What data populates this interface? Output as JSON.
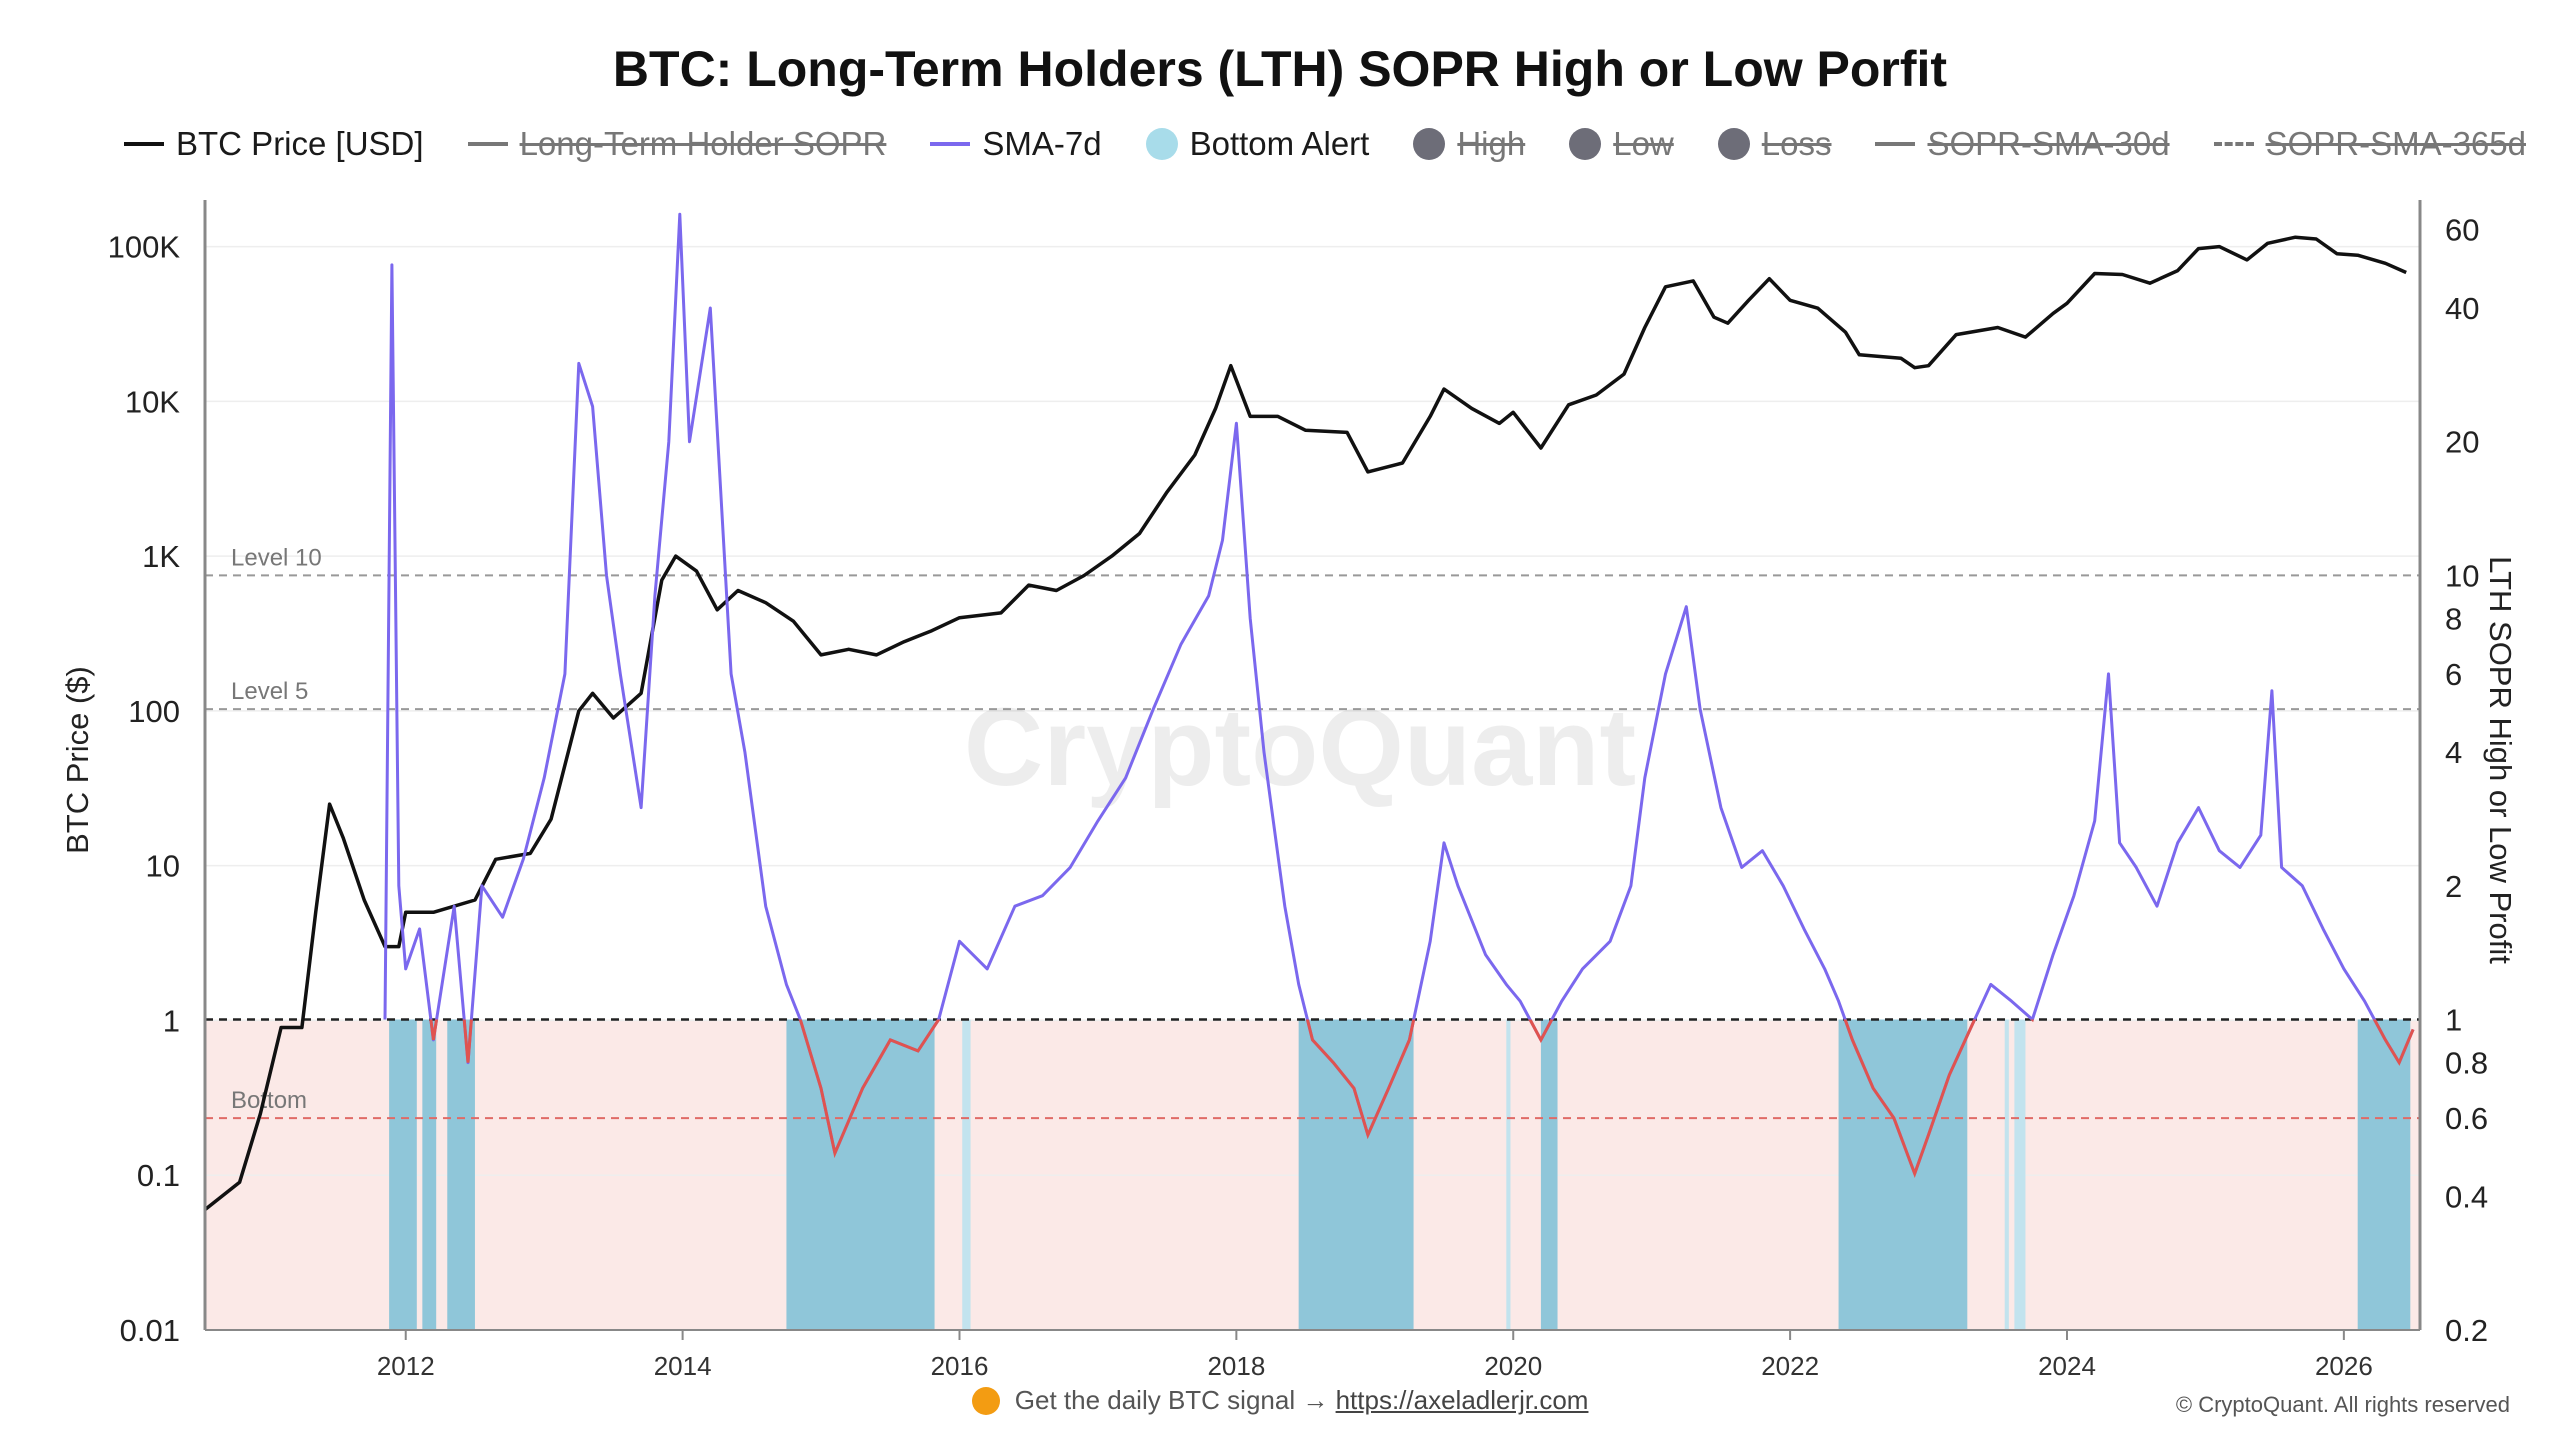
{
  "title": "BTC: Long-Term Holders (LTH) SOPR High or Low Porfit",
  "legend": [
    {
      "label": "BTC Price [USD]",
      "swatch": "line",
      "color": "#111111",
      "enabled": true
    },
    {
      "label": "Long-Term Holder SOPR",
      "swatch": "line",
      "color": "#777777",
      "enabled": false
    },
    {
      "label": "SMA-7d",
      "swatch": "line",
      "color": "#7b68ee",
      "enabled": true
    },
    {
      "label": "Bottom Alert",
      "swatch": "dot",
      "color": "#a8dcea",
      "enabled": true
    },
    {
      "label": "High",
      "swatch": "dot",
      "color": "#6d6d78",
      "enabled": false
    },
    {
      "label": "Low",
      "swatch": "dot",
      "color": "#6d6d78",
      "enabled": false
    },
    {
      "label": "Loss",
      "swatch": "dot",
      "color": "#6d6d78",
      "enabled": false
    },
    {
      "label": "SOPR-SMA-30d",
      "swatch": "line",
      "color": "#777777",
      "enabled": false
    },
    {
      "label": "SOPR-SMA-365d",
      "swatch": "dash",
      "color": "#777777",
      "enabled": false
    }
  ],
  "watermark": "CryptoQuant",
  "footer": {
    "signal_text": "Get the daily BTC signal →",
    "link": "https://axeladlerjr.com",
    "copyright": "© CryptoQuant. All rights reserved"
  },
  "colors": {
    "price": "#111111",
    "sma": "#7b68ee",
    "loss": "#e0534f",
    "bottom_alert": "#8fc6d9",
    "bottom_alert_light": "#c2e3ee",
    "loss_zone": "#fbe9e7",
    "grid": "#eeeeee",
    "level_line": "#999999",
    "bottom_line": "#e06a66"
  },
  "chart_data": {
    "type": "line",
    "x_range": [
      2010.55,
      2026.55
    ],
    "x_ticks": [
      "2012",
      "2014",
      "2016",
      "2018",
      "2020",
      "2022",
      "2024",
      "2026"
    ],
    "y_left": {
      "label": "BTC Price ($)",
      "scale": "log",
      "range": [
        0.01,
        200000
      ],
      "ticks": [
        "0.01",
        "0.1",
        "1",
        "10",
        "100",
        "1K",
        "10K",
        "100K"
      ]
    },
    "y_right": {
      "label": "LTH SOPR High or Low Profit",
      "scale": "log",
      "range": [
        0.2,
        70
      ],
      "ticks": [
        "0.2",
        "0.4",
        "0.6",
        "0.8",
        "1",
        "2",
        "4",
        "6",
        "8",
        "10",
        "20",
        "40",
        "60"
      ]
    },
    "reference_lines": [
      {
        "label": "Level 10",
        "value": 10
      },
      {
        "label": "Level 5",
        "value": 5
      },
      {
        "label": "",
        "value": 1
      },
      {
        "label": "Bottom",
        "value": 0.6
      }
    ],
    "series": [
      {
        "name": "BTC Price [USD]",
        "axis": "left",
        "points": [
          [
            2010.55,
            0.06
          ],
          [
            2010.8,
            0.09
          ],
          [
            2010.95,
            0.25
          ],
          [
            2011.1,
            0.9
          ],
          [
            2011.25,
            0.9
          ],
          [
            2011.35,
            5
          ],
          [
            2011.45,
            25
          ],
          [
            2011.55,
            15
          ],
          [
            2011.7,
            6
          ],
          [
            2011.85,
            3
          ],
          [
            2011.95,
            3
          ],
          [
            2012.0,
            5
          ],
          [
            2012.2,
            5
          ],
          [
            2012.5,
            6
          ],
          [
            2012.65,
            11
          ],
          [
            2012.9,
            12
          ],
          [
            2013.05,
            20
          ],
          [
            2013.25,
            100
          ],
          [
            2013.35,
            130
          ],
          [
            2013.5,
            90
          ],
          [
            2013.7,
            130
          ],
          [
            2013.85,
            700
          ],
          [
            2013.95,
            1000
          ],
          [
            2014.1,
            800
          ],
          [
            2014.25,
            450
          ],
          [
            2014.4,
            600
          ],
          [
            2014.6,
            500
          ],
          [
            2014.8,
            380
          ],
          [
            2015.0,
            230
          ],
          [
            2015.2,
            250
          ],
          [
            2015.4,
            230
          ],
          [
            2015.6,
            280
          ],
          [
            2015.8,
            330
          ],
          [
            2016.0,
            400
          ],
          [
            2016.3,
            430
          ],
          [
            2016.5,
            650
          ],
          [
            2016.7,
            600
          ],
          [
            2016.9,
            750
          ],
          [
            2017.1,
            1000
          ],
          [
            2017.3,
            1400
          ],
          [
            2017.5,
            2600
          ],
          [
            2017.7,
            4500
          ],
          [
            2017.85,
            9000
          ],
          [
            2017.96,
            17000
          ],
          [
            2018.1,
            8000
          ],
          [
            2018.3,
            8000
          ],
          [
            2018.5,
            6500
          ],
          [
            2018.8,
            6300
          ],
          [
            2018.95,
            3500
          ],
          [
            2019.2,
            4000
          ],
          [
            2019.4,
            8000
          ],
          [
            2019.5,
            12000
          ],
          [
            2019.7,
            9000
          ],
          [
            2019.9,
            7200
          ],
          [
            2020.0,
            8500
          ],
          [
            2020.2,
            5000
          ],
          [
            2020.4,
            9500
          ],
          [
            2020.6,
            11000
          ],
          [
            2020.8,
            15000
          ],
          [
            2020.95,
            30000
          ],
          [
            2021.1,
            55000
          ],
          [
            2021.3,
            60000
          ],
          [
            2021.45,
            35000
          ],
          [
            2021.55,
            32000
          ],
          [
            2021.7,
            45000
          ],
          [
            2021.85,
            62000
          ],
          [
            2022.0,
            45000
          ],
          [
            2022.2,
            40000
          ],
          [
            2022.4,
            28000
          ],
          [
            2022.5,
            20000
          ],
          [
            2022.8,
            19000
          ],
          [
            2022.9,
            16500
          ],
          [
            2023.0,
            17000
          ],
          [
            2023.2,
            27000
          ],
          [
            2023.5,
            30000
          ],
          [
            2023.7,
            26000
          ],
          [
            2023.9,
            37000
          ],
          [
            2024.0,
            43000
          ],
          [
            2024.2,
            67000
          ],
          [
            2024.4,
            66000
          ],
          [
            2024.6,
            58000
          ],
          [
            2024.8,
            70000
          ],
          [
            2024.95,
            97000
          ],
          [
            2025.1,
            100000
          ],
          [
            2025.3,
            82000
          ],
          [
            2025.45,
            105000
          ],
          [
            2025.65,
            115000
          ],
          [
            2025.8,
            112000
          ],
          [
            2025.95,
            90000
          ],
          [
            2026.1,
            88000
          ],
          [
            2026.3,
            78000
          ],
          [
            2026.45,
            68000
          ]
        ]
      },
      {
        "name": "SMA-7d",
        "axis": "right",
        "points": [
          [
            2011.85,
            1.0
          ],
          [
            2011.9,
            50
          ],
          [
            2011.95,
            2.0
          ],
          [
            2012.0,
            1.3
          ],
          [
            2012.1,
            1.6
          ],
          [
            2012.2,
            0.9
          ],
          [
            2012.35,
            1.8
          ],
          [
            2012.45,
            0.8
          ],
          [
            2012.55,
            2.0
          ],
          [
            2012.7,
            1.7
          ],
          [
            2012.85,
            2.3
          ],
          [
            2013.0,
            3.5
          ],
          [
            2013.15,
            6
          ],
          [
            2013.25,
            30
          ],
          [
            2013.35,
            24
          ],
          [
            2013.45,
            10
          ],
          [
            2013.55,
            6
          ],
          [
            2013.7,
            3
          ],
          [
            2013.8,
            9
          ],
          [
            2013.9,
            20
          ],
          [
            2013.98,
            65
          ],
          [
            2014.05,
            20
          ],
          [
            2014.2,
            40
          ],
          [
            2014.35,
            6
          ],
          [
            2014.45,
            4
          ],
          [
            2014.6,
            1.8
          ],
          [
            2014.75,
            1.2
          ],
          [
            2014.85,
            1.0
          ],
          [
            2015.0,
            0.7
          ],
          [
            2015.1,
            0.5
          ],
          [
            2015.3,
            0.7
          ],
          [
            2015.5,
            0.9
          ],
          [
            2015.7,
            0.85
          ],
          [
            2015.85,
            1.0
          ],
          [
            2016.0,
            1.5
          ],
          [
            2016.2,
            1.3
          ],
          [
            2016.4,
            1.8
          ],
          [
            2016.6,
            1.9
          ],
          [
            2016.8,
            2.2
          ],
          [
            2017.0,
            2.8
          ],
          [
            2017.2,
            3.5
          ],
          [
            2017.4,
            5
          ],
          [
            2017.6,
            7
          ],
          [
            2017.8,
            9
          ],
          [
            2017.9,
            12
          ],
          [
            2018.0,
            22
          ],
          [
            2018.1,
            8
          ],
          [
            2018.2,
            4
          ],
          [
            2018.35,
            1.8
          ],
          [
            2018.45,
            1.2
          ],
          [
            2018.55,
            0.9
          ],
          [
            2018.7,
            0.8
          ],
          [
            2018.85,
            0.7
          ],
          [
            2018.95,
            0.55
          ],
          [
            2019.1,
            0.7
          ],
          [
            2019.25,
            0.9
          ],
          [
            2019.4,
            1.5
          ],
          [
            2019.5,
            2.5
          ],
          [
            2019.6,
            2.0
          ],
          [
            2019.8,
            1.4
          ],
          [
            2019.95,
            1.2
          ],
          [
            2020.05,
            1.1
          ],
          [
            2020.2,
            0.9
          ],
          [
            2020.35,
            1.1
          ],
          [
            2020.5,
            1.3
          ],
          [
            2020.7,
            1.5
          ],
          [
            2020.85,
            2.0
          ],
          [
            2020.95,
            3.5
          ],
          [
            2021.1,
            6
          ],
          [
            2021.25,
            8.5
          ],
          [
            2021.35,
            5
          ],
          [
            2021.5,
            3
          ],
          [
            2021.65,
            2.2
          ],
          [
            2021.8,
            2.4
          ],
          [
            2021.95,
            2.0
          ],
          [
            2022.1,
            1.6
          ],
          [
            2022.25,
            1.3
          ],
          [
            2022.35,
            1.1
          ],
          [
            2022.45,
            0.9
          ],
          [
            2022.6,
            0.7
          ],
          [
            2022.75,
            0.6
          ],
          [
            2022.9,
            0.45
          ],
          [
            2023.0,
            0.55
          ],
          [
            2023.15,
            0.75
          ],
          [
            2023.3,
            0.95
          ],
          [
            2023.45,
            1.2
          ],
          [
            2023.6,
            1.1
          ],
          [
            2023.75,
            1.0
          ],
          [
            2023.9,
            1.4
          ],
          [
            2024.05,
            1.9
          ],
          [
            2024.2,
            2.8
          ],
          [
            2024.3,
            6
          ],
          [
            2024.38,
            2.5
          ],
          [
            2024.5,
            2.2
          ],
          [
            2024.65,
            1.8
          ],
          [
            2024.8,
            2.5
          ],
          [
            2024.95,
            3.0
          ],
          [
            2025.1,
            2.4
          ],
          [
            2025.25,
            2.2
          ],
          [
            2025.4,
            2.6
          ],
          [
            2025.48,
            5.5
          ],
          [
            2025.55,
            2.2
          ],
          [
            2025.7,
            2.0
          ],
          [
            2025.85,
            1.6
          ],
          [
            2026.0,
            1.3
          ],
          [
            2026.15,
            1.1
          ],
          [
            2026.3,
            0.9
          ],
          [
            2026.4,
            0.8
          ],
          [
            2026.5,
            0.95
          ]
        ]
      }
    ],
    "bottom_alert_periods": [
      [
        2011.88,
        2012.08
      ],
      [
        2012.12,
        2012.22
      ],
      [
        2012.3,
        2012.5
      ],
      [
        2014.75,
        2015.82
      ],
      [
        2016.02,
        2016.08
      ],
      [
        2018.45,
        2019.28
      ],
      [
        2019.95,
        2019.98
      ],
      [
        2020.2,
        2020.32
      ],
      [
        2022.35,
        2023.28
      ],
      [
        2023.55,
        2023.58
      ],
      [
        2023.62,
        2023.7
      ],
      [
        2026.1,
        2026.48
      ]
    ]
  }
}
